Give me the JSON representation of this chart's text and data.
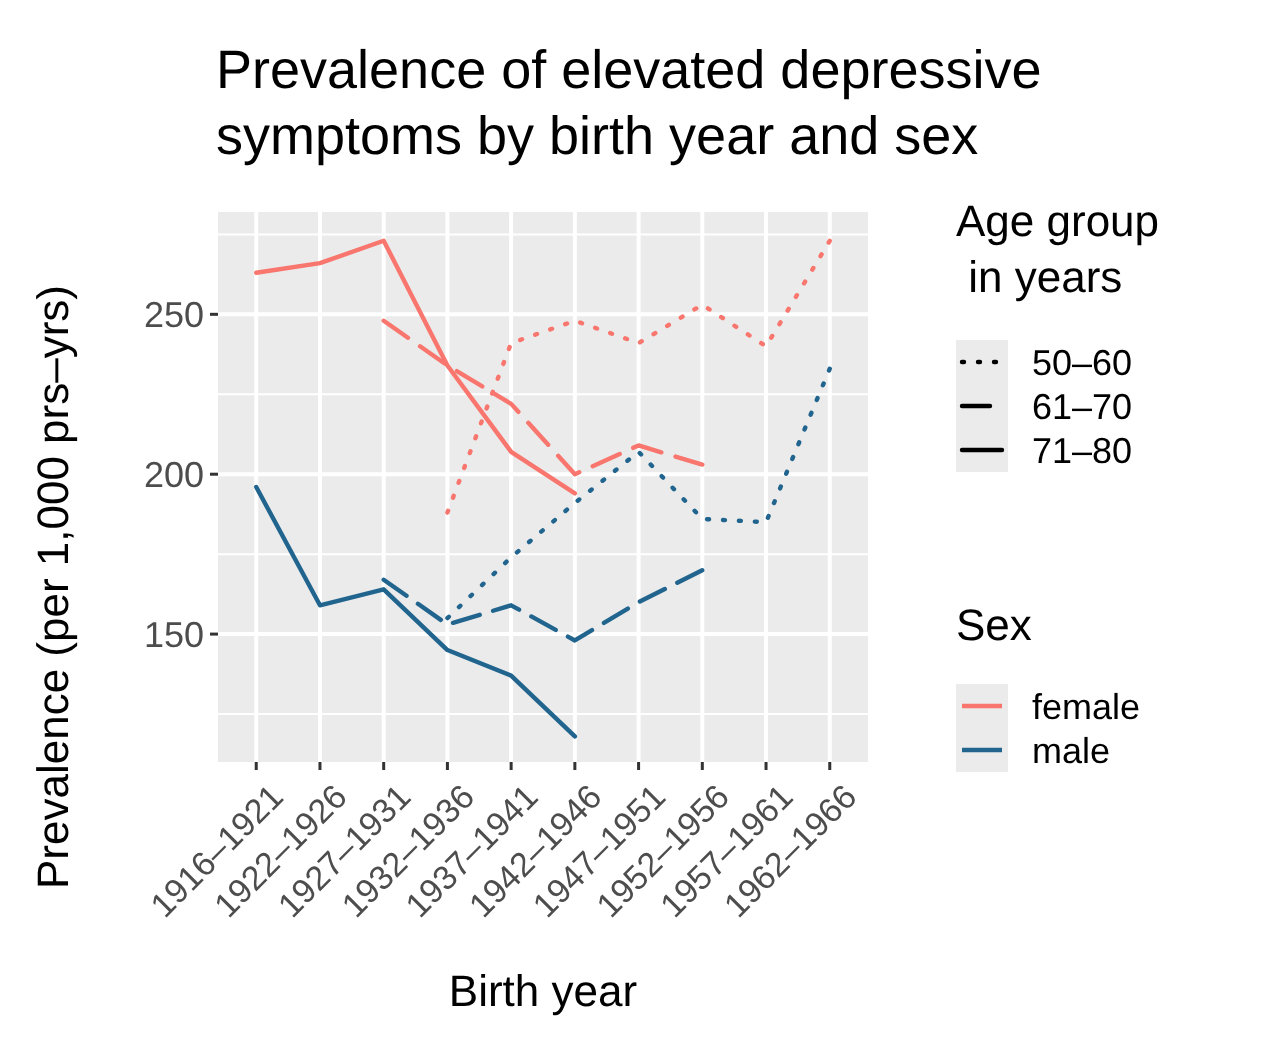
{
  "chart_data": {
    "type": "line",
    "title": "Prevalence of elevated depressive\nsymptoms by birth year and sex",
    "xlabel": "Birth year",
    "ylabel": "Prevalence (per 1,000 prs–yrs)",
    "legend_title": "Age group\n in years",
    "categories": [
      "1916–1921",
      "1922–1926",
      "1927–1931",
      "1932–1936",
      "1937–1941",
      "1942–1946",
      "1947–1951",
      "1952–1956",
      "1957–1961",
      "1962–1966"
    ],
    "series": [
      {
        "color": "#f8766d",
        "line_style": "dotted",
        "values": [
          null,
          null,
          null,
          188,
          241,
          248,
          241,
          253,
          240,
          273
        ]
      },
      {
        "color": "#f8766d",
        "line_style": "dashed",
        "values": [
          null,
          null,
          248,
          234,
          222,
          200,
          209,
          203,
          null,
          null
        ]
      },
      {
        "color": "#f8766d",
        "line_style": "solid",
        "values": [
          263,
          266,
          273,
          234,
          207,
          194,
          null,
          null,
          null,
          null
        ]
      },
      {
        "color": "#21658f",
        "line_style": "dotted",
        "values": [
          null,
          null,
          null,
          155,
          174,
          191,
          207,
          186,
          185,
          233
        ]
      },
      {
        "color": "#21658f",
        "line_style": "dashed",
        "values": [
          null,
          null,
          167,
          153,
          159,
          148,
          160,
          170,
          null,
          null
        ]
      },
      {
        "color": "#21658f",
        "line_style": "solid",
        "values": [
          196,
          159,
          164,
          145,
          137,
          118,
          null,
          null,
          null,
          null
        ]
      }
    ],
    "annotations": [
      "50–60",
      "61–70",
      "71–80",
      "Sex",
      "female",
      "male"
    ],
    "ylim": [
      110,
      282
    ],
    "yticks": [
      150,
      200,
      250
    ],
    "grid": true
  }
}
